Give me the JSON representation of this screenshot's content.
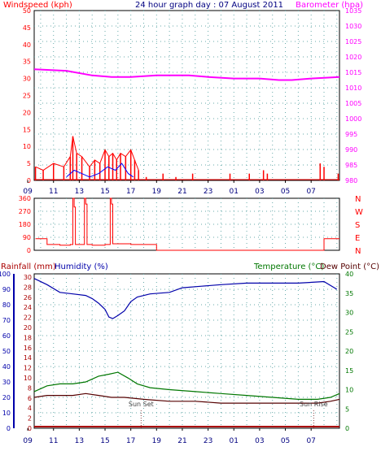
{
  "chart_data": [
    {
      "type": "line",
      "title": "24 hour graph day : 07 August 2011",
      "ylabel_left": "Windspeed (kph)",
      "ylabel_right": "Barometer (hpa)",
      "ylim_left": [
        0,
        50
      ],
      "yticks_left": [
        "0",
        "5",
        "10",
        "15",
        "20",
        "25",
        "30",
        "35",
        "40",
        "45",
        "50"
      ],
      "ylim_right": [
        980,
        1035
      ],
      "yticks_right": [
        "980",
        "985",
        "990",
        "995",
        "1000",
        "1005",
        "1010",
        "1015",
        "1020",
        "1025",
        "1030",
        "1035"
      ],
      "x_start_hour": 9.5,
      "x_end_hour": 33.2,
      "xticks": [
        "11",
        "13",
        "15",
        "17",
        "19",
        "21",
        "23",
        "01",
        "03",
        "05",
        "07",
        "09"
      ],
      "colors": {
        "wind": "#ff0000",
        "gust": "#0000ff",
        "avg": "#00aa00",
        "baro": "#ff00ff"
      },
      "barometer": {
        "name": "Barometer",
        "x": [
          9.5,
          12.0,
          14.0,
          15.5,
          17.0,
          19.0,
          21.5,
          23.0,
          25.0,
          27.0,
          28.5,
          29.5,
          31.0,
          33.2
        ],
        "y": [
          1016.0,
          1015.5,
          1014.0,
          1013.5,
          1013.5,
          1014.0,
          1014.0,
          1013.5,
          1013.0,
          1013.0,
          1012.5,
          1012.5,
          1013.0,
          1013.5
        ]
      },
      "windspeed": {
        "name": "Windspeed",
        "x": [
          9.6,
          10.2,
          11.0,
          11.8,
          12.3,
          12.5,
          12.8,
          13.2,
          13.8,
          14.2,
          14.6,
          15.0,
          15.3,
          15.6,
          15.9,
          16.2,
          16.6,
          17.0,
          17.3,
          17.6,
          18.2,
          19.5,
          20.5,
          21.8,
          24.7,
          26.2,
          27.3,
          27.6,
          31.7,
          32.0,
          33.1
        ],
        "y": [
          4,
          3,
          5,
          4,
          7,
          13,
          8,
          7,
          4,
          6,
          5,
          9,
          7,
          8,
          6,
          8,
          7,
          9,
          6,
          3,
          1,
          2,
          1,
          2,
          2,
          2,
          3,
          2,
          5,
          4,
          2
        ]
      },
      "gust": {
        "name": "Gust",
        "x": [
          12.0,
          12.6,
          13.2,
          13.8,
          14.5,
          15.2,
          15.8,
          16.3,
          16.8,
          17.2
        ],
        "y": [
          1,
          3,
          2,
          1,
          2,
          4,
          3,
          5,
          2,
          1
        ]
      }
    },
    {
      "type": "scatter",
      "ylabel_right": [
        "N",
        "W",
        "S",
        "E",
        "N"
      ],
      "ylim_left": [
        0,
        360
      ],
      "yticks_left": [
        "0",
        "90",
        "180",
        "270",
        "360"
      ],
      "x": [
        9.6,
        10.5,
        11.5,
        12.3,
        12.5,
        12.6,
        12.7,
        13.4,
        13.5,
        13.6,
        14.0,
        15.0,
        15.4,
        15.5,
        15.6,
        17.0,
        18.4,
        19.0,
        25.0,
        31.0,
        32.0,
        33.2
      ],
      "y": [
        80,
        40,
        35,
        40,
        360,
        300,
        40,
        360,
        320,
        40,
        35,
        40,
        360,
        320,
        45,
        40,
        40,
        0,
        0,
        0,
        80,
        80
      ],
      "color": "#ff0000"
    },
    {
      "type": "line",
      "ylabel_left": "Rainfall (mm)",
      "ylabel_left2": "Humidity (%)",
      "ylabel_right": "Temperature (°C)",
      "ylabel_right2": "Dew Point (°C)",
      "ylim_left": [
        0,
        100
      ],
      "yticks_left": [
        "0",
        "10",
        "20",
        "30",
        "40",
        "50",
        "60",
        "70",
        "80",
        "90",
        "100"
      ],
      "yticks_left2": [
        "0",
        "2",
        "4",
        "6",
        "8",
        "10",
        "12",
        "14",
        "16",
        "18",
        "20",
        "22",
        "24",
        "26",
        "28",
        "30"
      ],
      "ylim_right": [
        0,
        40
      ],
      "yticks_right": [
        "0",
        "5",
        "10",
        "15",
        "20",
        "25",
        "30",
        "35",
        "40"
      ],
      "annotations": [
        "Sun Set",
        "Sun Rise"
      ],
      "sunset_hour": 17.8,
      "sunrise_hour": 31.2,
      "colors": {
        "humidity": "#0000aa",
        "temperature": "#007700",
        "dewpoint": "#550000",
        "rain": "#aa0000"
      },
      "humidity": {
        "name": "Humidity",
        "x": [
          9.5,
          10.5,
          11.5,
          12.5,
          13.5,
          14.0,
          14.5,
          15.0,
          15.3,
          15.6,
          16.0,
          16.5,
          17.0,
          17.5,
          18.5,
          20.0,
          21.0,
          22.5,
          24.0,
          26.0,
          28.0,
          30.0,
          32.0,
          33.0
        ],
        "y": [
          97,
          93,
          88,
          87,
          86,
          84,
          81,
          77,
          72,
          71,
          73,
          76,
          82,
          85,
          87,
          88,
          91,
          92,
          93,
          94,
          94,
          94,
          95,
          90
        ]
      },
      "temperature": {
        "name": "Temperature (°C)",
        "x": [
          9.5,
          10.5,
          11.5,
          12.5,
          13.5,
          14.5,
          15.3,
          16.0,
          16.8,
          17.5,
          18.5,
          20.0,
          22.0,
          24.0,
          26.0,
          28.0,
          30.0,
          31.5,
          32.5,
          33.2
        ],
        "y": [
          9.5,
          11.0,
          11.5,
          11.5,
          12.0,
          13.5,
          14.0,
          14.5,
          13.0,
          11.5,
          10.5,
          10.0,
          9.5,
          9.0,
          8.5,
          8.0,
          7.5,
          7.5,
          8.0,
          9.0
        ]
      },
      "dewpoint": {
        "name": "Dew Point (°C)",
        "x": [
          9.5,
          10.5,
          11.5,
          12.5,
          13.5,
          14.5,
          15.5,
          16.5,
          18.0,
          20.0,
          22.0,
          24.0,
          26.0,
          28.0,
          30.0,
          31.5,
          32.5,
          33.2
        ],
        "y": [
          8.0,
          8.5,
          8.5,
          8.5,
          9.0,
          8.5,
          8.0,
          8.0,
          7.5,
          7.0,
          7.0,
          6.5,
          6.5,
          6.5,
          6.5,
          6.5,
          7.0,
          7.5
        ]
      },
      "rain": {
        "name": "Rainfall",
        "x": [
          9.5,
          33.2
        ],
        "y": [
          0,
          0
        ]
      }
    }
  ]
}
